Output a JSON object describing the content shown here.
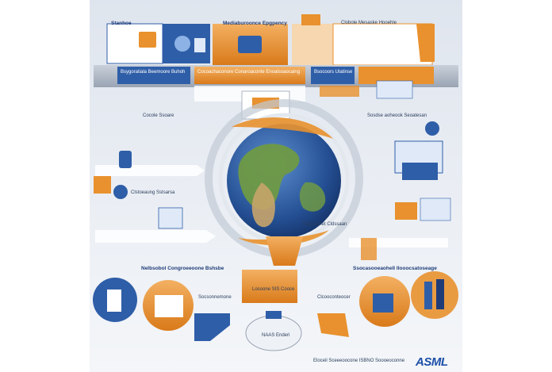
{
  "colors": {
    "page_bg": "#eef1f6",
    "blue": "#2f5ea8",
    "blue_dark": "#1f3c78",
    "orange": "#e8912e",
    "orange_light": "#f3b062",
    "gray_band": "#b9c1cc",
    "globe_ocean": "#2b5fa6",
    "land_green": "#6f9a45",
    "land_tan": "#c8a46a",
    "brand": "#1d4fa8"
  },
  "icons": [
    "monitor-icon",
    "people-icon",
    "globe-icon",
    "arrow-icon",
    "person-icon",
    "lab-icon"
  ],
  "brand": {
    "logo": "ASML"
  },
  "labels": {
    "top1_title": "Stanhoe",
    "top2_title": "Mediaburoonce Epgpency",
    "top3_title": "Clobole Mesaske Hooehle",
    "band1_title": "Bsygoratiala Beemoore Buhoh",
    "band2_title": "Cocoachaconore Conaroaconte Enoalsoaocaing",
    "band3_title": "Bsocoors Ulatinse",
    "left_mid_title": "Cocole Ssoare",
    "right_mid_title": "Sosdse aoheook Seoatesan",
    "left_small_title": "Clstoeaung Sstsarsa",
    "right_small_title": "Edecoohet Cldssaan",
    "bottom_left_title": "Nelbsobol Congroeeoone Bshsbe",
    "bottom_center_title": "Losoone SIS Cooce",
    "bottom_right_title": "Ssocasooeaohell Ilooocsatoseage",
    "bottom_center_caption": "NAAS Enderi",
    "bottom_left_caption": "Socsonnemone",
    "bottom_right_caption": "Clcooconteocer",
    "footer": "Eloceil Sceeeoocone  ISBNO Soooeoconne"
  }
}
